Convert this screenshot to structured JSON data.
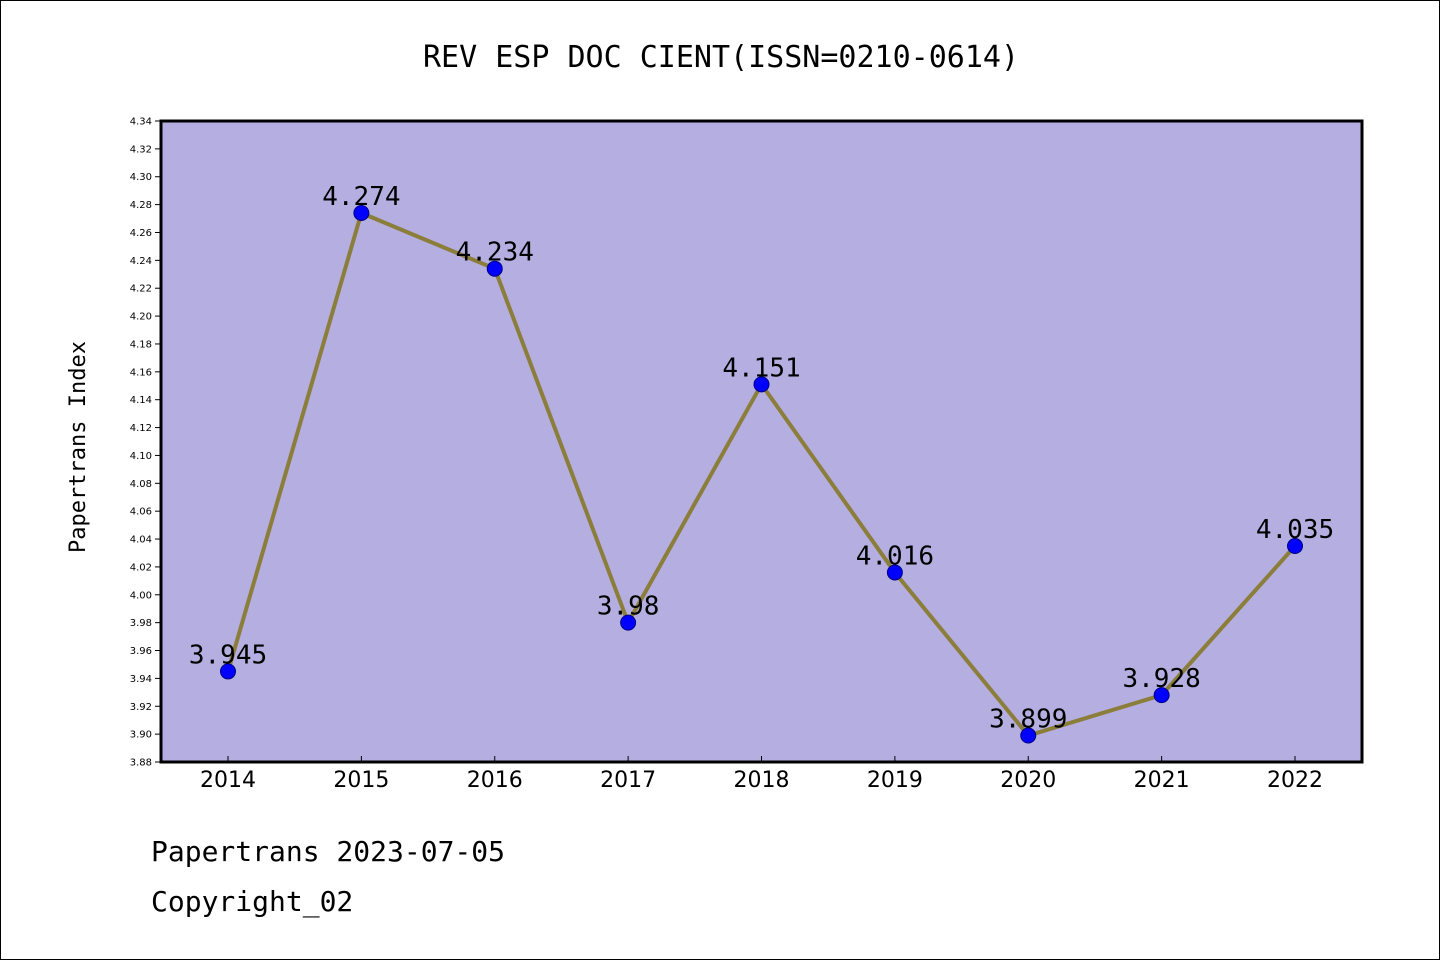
{
  "chart_data": {
    "type": "line",
    "title": "REV ESP DOC CIENT(ISSN=0210-0614)",
    "xlabel": "",
    "ylabel": "Papertrans Index",
    "categories": [
      "2014",
      "2015",
      "2016",
      "2017",
      "2018",
      "2019",
      "2020",
      "2021",
      "2022"
    ],
    "series": [
      {
        "values": [
          3.945,
          4.274,
          4.234,
          3.98,
          4.151,
          4.016,
          3.899,
          3.928,
          4.035
        ],
        "labels": [
          "3.945",
          "4.274",
          "4.234",
          "3.98",
          "4.151",
          "4.016",
          "3.899",
          "3.928",
          "4.035"
        ]
      }
    ],
    "ylim": [
      3.88,
      4.34
    ],
    "yticks": [
      "3.88",
      "3.90",
      "3.92",
      "3.94",
      "3.96",
      "3.98",
      "4.00",
      "4.02",
      "4.04",
      "4.06",
      "4.08",
      "4.10",
      "4.12",
      "4.14",
      "4.16",
      "4.18",
      "4.20",
      "4.22",
      "4.24",
      "4.26",
      "4.28",
      "4.30",
      "4.32",
      "4.34"
    ],
    "grid": false,
    "legend": "none",
    "colors": {
      "plot_background": "#b5aee0",
      "line": "#8b7d3a",
      "marker_fill": "#0000ff",
      "marker_edge": "#000080"
    }
  },
  "footer": {
    "line1": "Papertrans 2023-07-05",
    "line2": "Copyright_02"
  }
}
